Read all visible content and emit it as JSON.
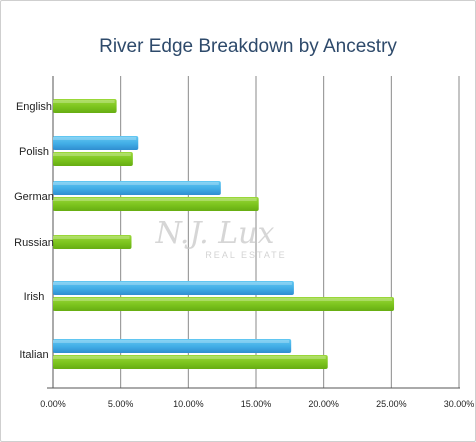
{
  "chart_data": {
    "type": "bar",
    "orientation": "horizontal",
    "title": "River Edge Breakdown by Ancestry",
    "xlabel": "",
    "ylabel": "",
    "categories": [
      "English",
      "Polish",
      "German",
      "Russian",
      "Irish",
      "Italian"
    ],
    "series": [
      {
        "color": "#41ade6",
        "values": [
          null,
          6.3,
          12.4,
          null,
          17.8,
          17.6
        ]
      },
      {
        "color": "#7cc41e",
        "values": [
          4.7,
          5.9,
          15.2,
          5.8,
          25.2,
          20.3
        ]
      }
    ],
    "xlim": [
      0,
      30
    ],
    "x_ticks": [
      "0.00%",
      "5.00%",
      "10.00%",
      "15.00%",
      "20.00%",
      "25.00%",
      "30.00%"
    ],
    "grid": true,
    "legend": "none"
  },
  "watermark": {
    "main": "N.J. Lux",
    "sub": "REAL ESTATE"
  }
}
